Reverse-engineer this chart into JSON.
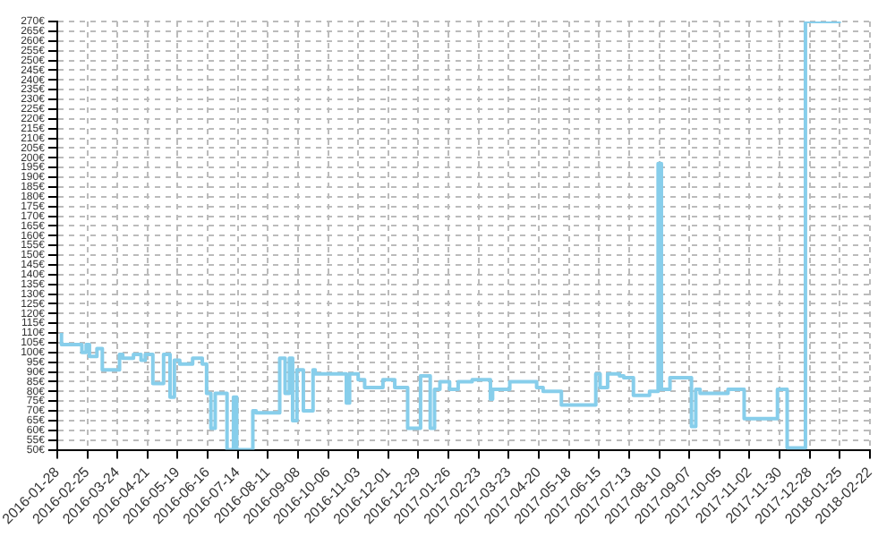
{
  "chart_data": {
    "type": "step",
    "x": [
      "2016-02-01",
      "2016-02-20",
      "2016-02-24",
      "2016-02-27",
      "2016-03-05",
      "2016-03-10",
      "2016-03-26",
      "2016-03-29",
      "2016-04-08",
      "2016-04-15",
      "2016-04-19",
      "2016-04-26",
      "2016-05-06",
      "2016-05-12",
      "2016-05-16",
      "2016-05-21",
      "2016-06-02",
      "2016-06-11",
      "2016-06-15",
      "2016-06-19",
      "2016-06-23",
      "2016-07-04",
      "2016-07-10",
      "2016-07-13",
      "2016-07-28",
      "2016-07-31",
      "2016-08-22",
      "2016-08-27",
      "2016-08-31",
      "2016-09-03",
      "2016-09-07",
      "2016-09-13",
      "2016-09-22",
      "2016-09-24",
      "2016-10-23",
      "2016-10-26",
      "2016-11-03",
      "2016-11-09",
      "2016-11-26",
      "2016-12-07",
      "2016-12-19",
      "2016-12-31",
      "2017-01-09",
      "2017-01-13",
      "2017-01-18",
      "2017-01-27",
      "2017-02-04",
      "2017-02-17",
      "2017-03-06",
      "2017-03-08",
      "2017-03-24",
      "2017-04-18",
      "2017-04-24",
      "2017-05-11",
      "2017-06-12",
      "2017-06-16",
      "2017-06-23",
      "2017-07-04",
      "2017-07-08",
      "2017-07-17",
      "2017-08-01",
      "2017-08-09",
      "2017-08-12",
      "2017-08-20",
      "2017-09-09",
      "2017-09-13",
      "2017-09-17",
      "2017-10-13",
      "2017-10-28",
      "2017-11-28",
      "2017-12-07",
      "2017-12-24",
      "2018-01-13",
      "2018-01-26"
    ],
    "series": [
      {
        "color": "#87ceeb",
        "values": [
          110,
          104,
          100,
          104,
          98,
          102,
          91,
          99,
          97,
          99,
          96,
          99,
          84,
          99,
          77,
          96,
          94,
          97,
          94,
          79,
          61,
          79,
          50,
          77,
          50,
          70,
          69,
          97,
          79,
          97,
          65,
          91,
          70,
          91,
          89,
          74,
          89,
          86,
          82,
          86,
          82,
          61,
          88,
          61,
          81,
          85,
          81,
          85,
          86,
          76,
          81,
          85,
          82,
          80,
          73,
          89,
          82,
          89,
          88,
          87,
          78,
          80,
          197,
          81,
          87,
          62,
          81,
          79,
          81,
          66,
          81,
          51,
          270,
          270
        ]
      }
    ],
    "xlim": [
      "2016-01-28",
      "2018-02-22"
    ],
    "xticks": [
      "2016-01-28",
      "2016-02-25",
      "2016-03-24",
      "2016-04-21",
      "2016-05-19",
      "2016-06-16",
      "2016-07-14",
      "2016-08-11",
      "2016-09-08",
      "2016-10-06",
      "2016-11-03",
      "2016-12-01",
      "2016-12-29",
      "2017-01-26",
      "2017-02-23",
      "2017-03-23",
      "2017-04-20",
      "2017-05-18",
      "2017-06-15",
      "2017-07-13",
      "2017-08-10",
      "2017-09-07",
      "2017-10-05",
      "2017-11-02",
      "2017-11-30",
      "2017-12-28",
      "2018-01-25",
      "2018-02-22"
    ],
    "ylim": [
      50,
      270
    ],
    "yticks": [
      {
        "value": 50,
        "label": "50€"
      },
      {
        "value": 55,
        "label": "55€"
      },
      {
        "value": 60,
        "label": "60€"
      },
      {
        "value": 65,
        "label": "65€"
      },
      {
        "value": 70,
        "label": "70€"
      },
      {
        "value": 75,
        "label": "75€"
      },
      {
        "value": 80,
        "label": "80€"
      },
      {
        "value": 85,
        "label": "85€"
      },
      {
        "value": 90,
        "label": "90€"
      },
      {
        "value": 95,
        "label": "95€"
      },
      {
        "value": 100,
        "label": "100€"
      },
      {
        "value": 105,
        "label": "105€"
      },
      {
        "value": 110,
        "label": "110€"
      },
      {
        "value": 115,
        "label": "115€"
      },
      {
        "value": 120,
        "label": "120€"
      },
      {
        "value": 125,
        "label": "125€"
      },
      {
        "value": 130,
        "label": "130€"
      },
      {
        "value": 135,
        "label": "135€"
      },
      {
        "value": 140,
        "label": "140€"
      },
      {
        "value": 145,
        "label": "145€"
      },
      {
        "value": 150,
        "label": "150€"
      },
      {
        "value": 155,
        "label": "155€"
      },
      {
        "value": 160,
        "label": "160€"
      },
      {
        "value": 165,
        "label": "165€"
      },
      {
        "value": 170,
        "label": "170€"
      },
      {
        "value": 175,
        "label": "175€"
      },
      {
        "value": 180,
        "label": "180€"
      },
      {
        "value": 185,
        "label": "185€"
      },
      {
        "value": 190,
        "label": "190€"
      },
      {
        "value": 195,
        "label": "195€"
      },
      {
        "value": 200,
        "label": "200€"
      },
      {
        "value": 205,
        "label": "205€"
      },
      {
        "value": 210,
        "label": "210€"
      },
      {
        "value": 215,
        "label": "215€"
      },
      {
        "value": 220,
        "label": "220€"
      },
      {
        "value": 225,
        "label": "225€"
      },
      {
        "value": 230,
        "label": "230€"
      },
      {
        "value": 235,
        "label": "235€"
      },
      {
        "value": 240,
        "label": "240€"
      },
      {
        "value": 245,
        "label": "245€"
      },
      {
        "value": 250,
        "label": "250€"
      },
      {
        "value": 255,
        "label": "255€"
      },
      {
        "value": 260,
        "label": "260€"
      },
      {
        "value": 265,
        "label": "265€"
      },
      {
        "value": 270,
        "label": "270€"
      }
    ],
    "grid": true
  }
}
